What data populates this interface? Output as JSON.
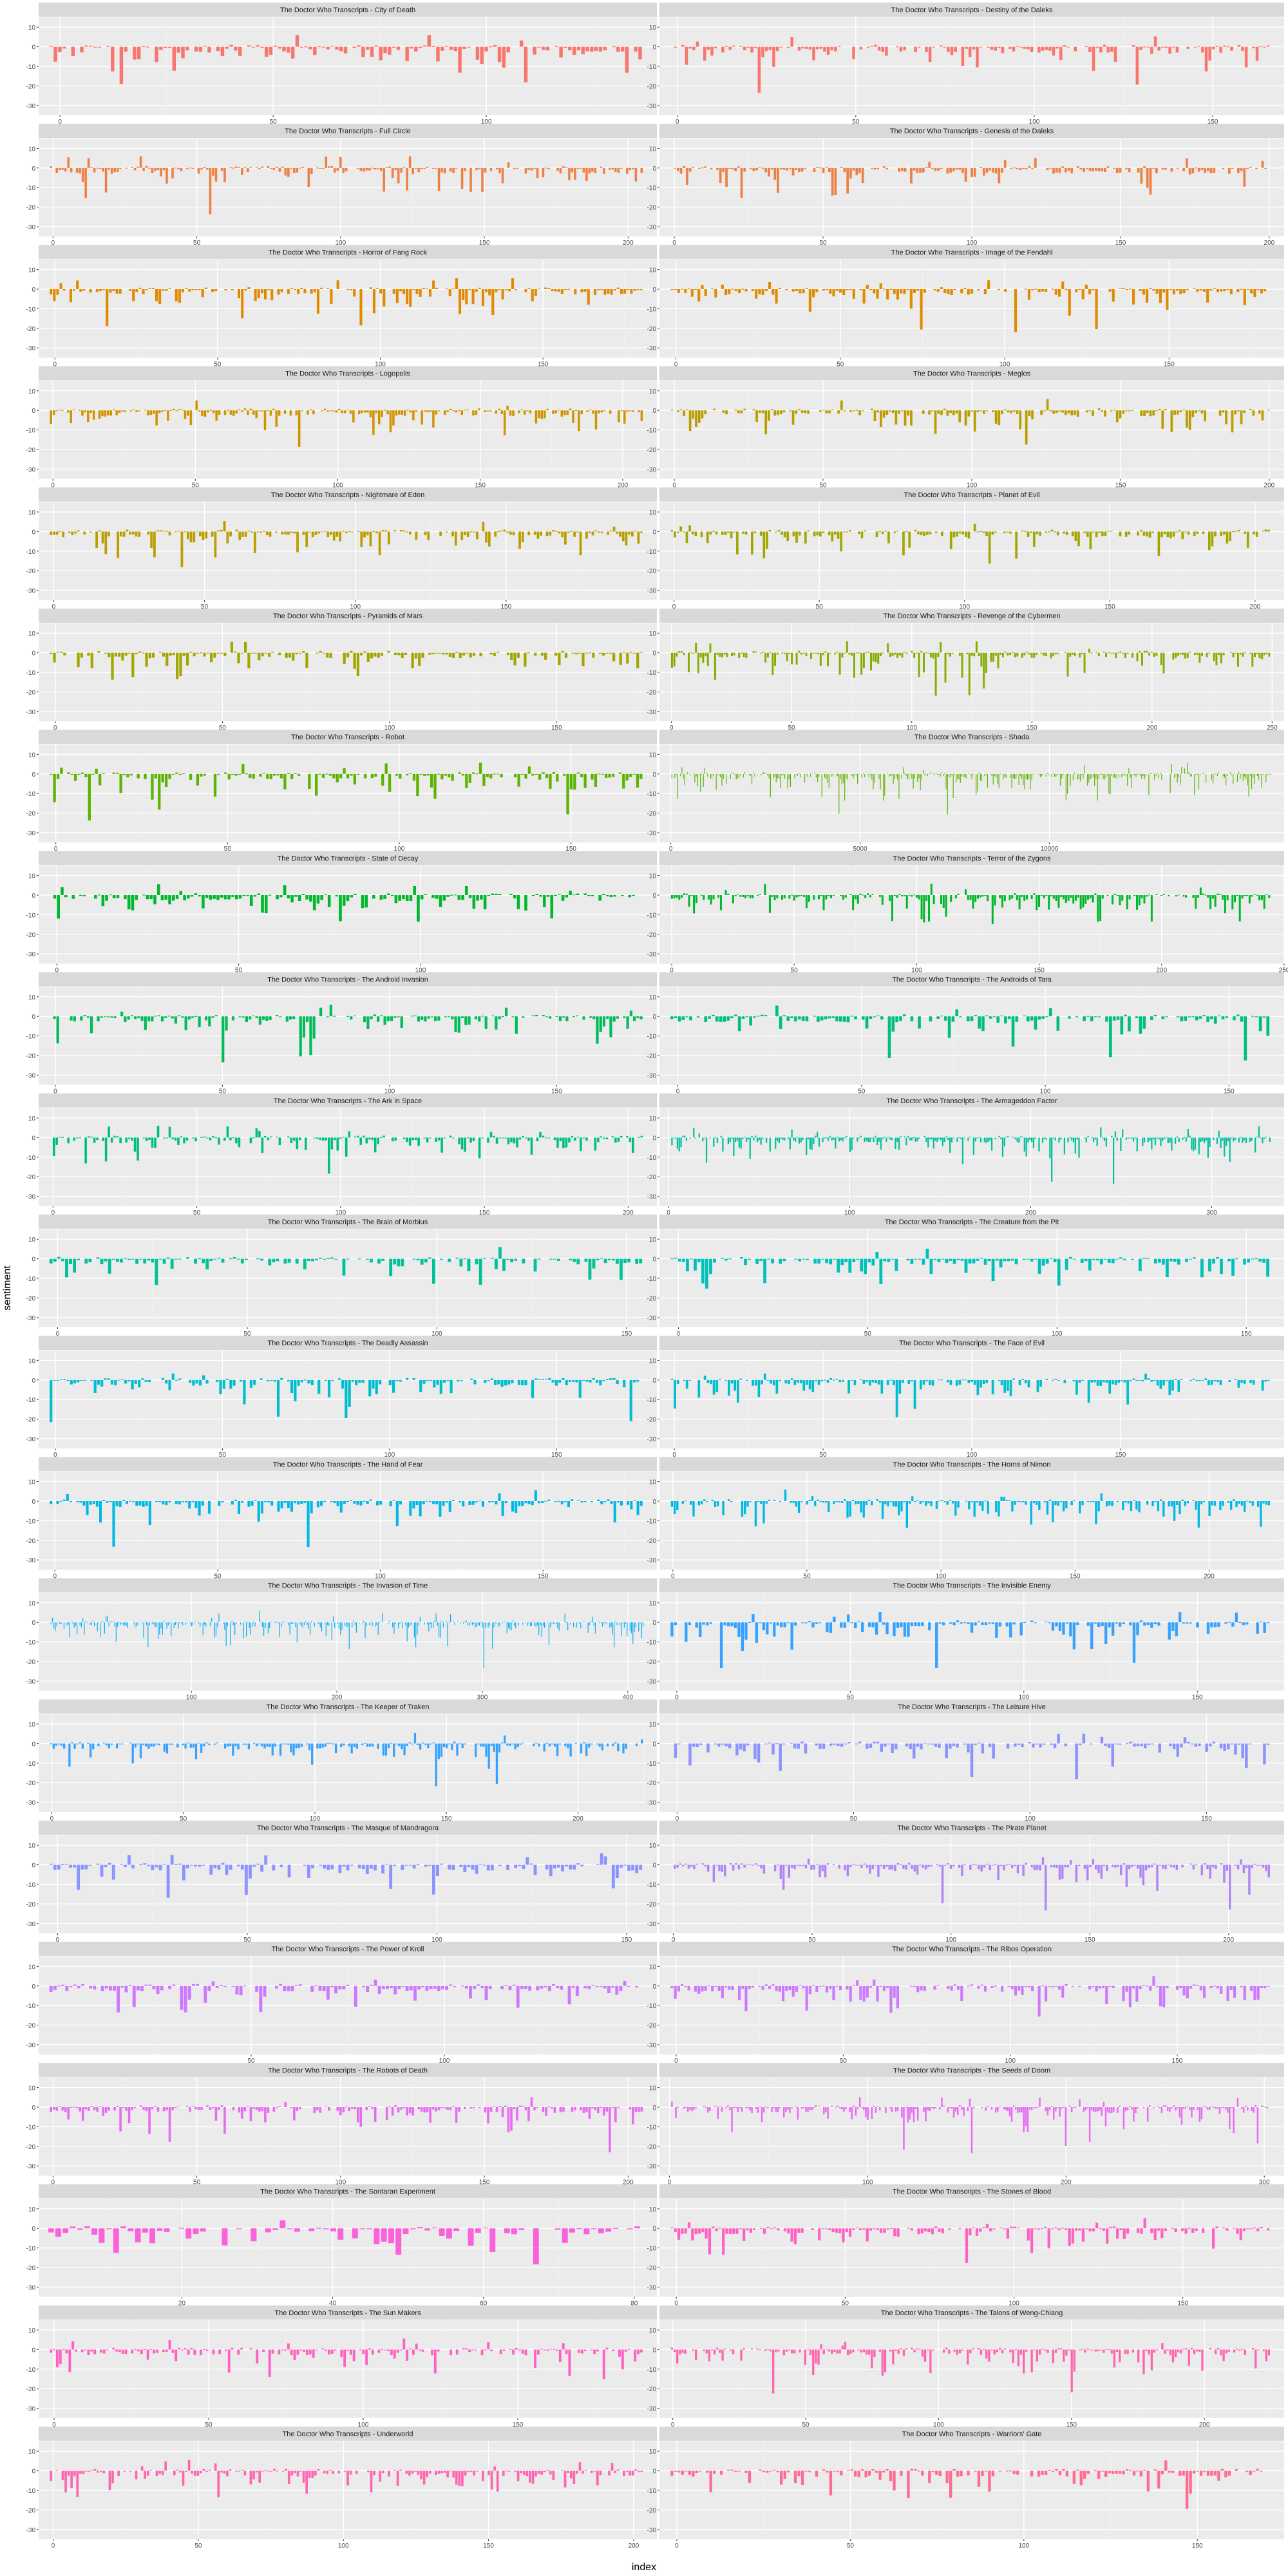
{
  "figure": {
    "ylabel": "sentiment",
    "xlabel": "index",
    "y_ticks": [
      10,
      0,
      -10,
      -20,
      -30
    ],
    "ylim": [
      -35,
      15
    ],
    "colors": [
      "#F8766D",
      "#EE8044",
      "#E18A00",
      "#CF9400",
      "#BA9E00",
      "#A3A500",
      "#85AD00",
      "#5EB300",
      "#00B82B",
      "#00BC59",
      "#00BF7D",
      "#00C19C",
      "#00C1B8",
      "#00BECF",
      "#00B8E5",
      "#00AEF6",
      "#35A2FF",
      "#8B93FF",
      "#B084F7",
      "#CD79FF",
      "#E76BF3",
      "#FA62DB",
      "#FF61C3",
      "#FF64AE",
      "#FF6C91"
    ]
  },
  "chart_data": [
    {
      "type": "bar",
      "title": "The Doctor Who Transcripts - City of Death",
      "x_ticks": [
        0,
        50,
        100
      ],
      "xlim": [
        -5,
        140
      ],
      "n": 135,
      "seed": 1
    },
    {
      "type": "bar",
      "title": "The Doctor Who Transcripts - Destiny of the Daleks",
      "x_ticks": [
        0,
        50,
        100,
        150
      ],
      "xlim": [
        -5,
        170
      ],
      "n": 165,
      "seed": 2
    },
    {
      "type": "bar",
      "title": "The Doctor Who Transcripts - Full Circle",
      "x_ticks": [
        0,
        50,
        100,
        150,
        200
      ],
      "xlim": [
        -5,
        210
      ],
      "n": 205,
      "seed": 3
    },
    {
      "type": "bar",
      "title": "The Doctor Who Transcripts - Genesis of the Daleks",
      "x_ticks": [
        0,
        50,
        100,
        150,
        200
      ],
      "xlim": [
        -5,
        205
      ],
      "n": 198,
      "seed": 4
    },
    {
      "type": "bar",
      "title": "The Doctor Who Transcripts - Horror of Fang Rock",
      "x_ticks": [
        0,
        50,
        100,
        150
      ],
      "xlim": [
        -5,
        185
      ],
      "n": 180,
      "seed": 5
    },
    {
      "type": "bar",
      "title": "The Doctor Who Transcripts - Image of the Fendahl",
      "x_ticks": [
        0,
        50,
        100,
        150
      ],
      "xlim": [
        -5,
        185
      ],
      "n": 178,
      "seed": 6
    },
    {
      "type": "bar",
      "title": "The Doctor Who Transcripts - Logopolis",
      "x_ticks": [
        0,
        50,
        100,
        150,
        200
      ],
      "xlim": [
        -5,
        212
      ],
      "n": 208,
      "seed": 7
    },
    {
      "type": "bar",
      "title": "The Doctor Who Transcripts - Meglos",
      "x_ticks": [
        0,
        50,
        100,
        150,
        200
      ],
      "xlim": [
        -5,
        205
      ],
      "n": 198,
      "seed": 8
    },
    {
      "type": "bar",
      "title": "The Doctor Who Transcripts - Nightmare of Eden",
      "x_ticks": [
        0,
        50,
        100,
        150
      ],
      "xlim": [
        -5,
        200
      ],
      "n": 195,
      "seed": 9
    },
    {
      "type": "bar",
      "title": "The Doctor Who Transcripts - Planet of Evil",
      "x_ticks": [
        0,
        50,
        100,
        150,
        200
      ],
      "xlim": [
        -5,
        210
      ],
      "n": 202,
      "seed": 10
    },
    {
      "type": "bar",
      "title": "The Doctor Who Transcripts - Pyramids of Mars",
      "x_ticks": [
        0,
        50,
        100,
        150
      ],
      "xlim": [
        -5,
        180
      ],
      "n": 174,
      "seed": 11
    },
    {
      "type": "bar",
      "title": "The Doctor Who Transcripts - Revenge of the Cybermen",
      "x_ticks": [
        0,
        50,
        100,
        150,
        200,
        250
      ],
      "xlim": [
        -5,
        255
      ],
      "n": 250,
      "seed": 12
    },
    {
      "type": "bar",
      "title": "The Doctor Who Transcripts - Robot",
      "x_ticks": [
        0,
        50,
        100,
        150
      ],
      "xlim": [
        -5,
        175
      ],
      "n": 170,
      "seed": 13
    },
    {
      "type": "bar",
      "title": "The Doctor Who Transcripts - Shada",
      "x_ticks": [
        0,
        5000,
        10000
      ],
      "xlim": [
        -300,
        16200
      ],
      "n": 420,
      "seed": 14,
      "thin": true
    },
    {
      "type": "bar",
      "title": "The Doctor Who Transcripts - State of Decay",
      "x_ticks": [
        0,
        50,
        100
      ],
      "xlim": [
        -5,
        165
      ],
      "n": 160,
      "seed": 15
    },
    {
      "type": "bar",
      "title": "The Doctor Who Transcripts - Terror of the Zygons",
      "x_ticks": [
        0,
        50,
        100,
        150,
        200,
        250
      ],
      "xlim": [
        -5,
        250
      ],
      "n": 245,
      "seed": 16
    },
    {
      "type": "bar",
      "title": "The Doctor Who Transcripts - The Android Invasion",
      "x_ticks": [
        0,
        50,
        100,
        150
      ],
      "xlim": [
        -5,
        180
      ],
      "n": 176,
      "seed": 17
    },
    {
      "type": "bar",
      "title": "The Doctor Who Transcripts - The Androids of Tara",
      "x_ticks": [
        0,
        50,
        100,
        150
      ],
      "xlim": [
        -5,
        165
      ],
      "n": 160,
      "seed": 18
    },
    {
      "type": "bar",
      "title": "The Doctor Who Transcripts - The Ark in Space",
      "x_ticks": [
        0,
        50,
        100,
        150,
        200
      ],
      "xlim": [
        -5,
        210
      ],
      "n": 205,
      "seed": 19
    },
    {
      "type": "bar",
      "title": "The Doctor Who Transcripts - The Armageddon Factor",
      "x_ticks": [
        0,
        100,
        200,
        300
      ],
      "xlim": [
        -5,
        340
      ],
      "n": 330,
      "seed": 20
    },
    {
      "type": "bar",
      "title": "The Doctor Who Transcripts - The Brain of Morbius",
      "x_ticks": [
        0,
        50,
        100,
        150
      ],
      "xlim": [
        -5,
        158
      ],
      "n": 152,
      "seed": 21
    },
    {
      "type": "bar",
      "title": "The Doctor Who Transcripts - The Creature from the Pit",
      "x_ticks": [
        0,
        50,
        100,
        150
      ],
      "xlim": [
        -5,
        160
      ],
      "n": 155,
      "seed": 22
    },
    {
      "type": "bar",
      "title": "The Doctor Who Transcripts - The Deadly Assassin",
      "x_ticks": [
        0,
        50,
        100,
        150
      ],
      "xlim": [
        -5,
        180
      ],
      "n": 175,
      "seed": 23
    },
    {
      "type": "bar",
      "title": "The Doctor Who Transcripts - The Face of Evil",
      "x_ticks": [
        0,
        50,
        100,
        150
      ],
      "xlim": [
        -5,
        205
      ],
      "n": 200,
      "seed": 24
    },
    {
      "type": "bar",
      "title": "The Doctor Who Transcripts - The Hand of Fear",
      "x_ticks": [
        0,
        50,
        100,
        150
      ],
      "xlim": [
        -5,
        185
      ],
      "n": 180,
      "seed": 25
    },
    {
      "type": "bar",
      "title": "The Doctor Who Transcripts - The Horns of Nimon",
      "x_ticks": [
        0,
        50,
        100,
        150,
        200
      ],
      "xlim": [
        -5,
        228
      ],
      "n": 222,
      "seed": 26
    },
    {
      "type": "bar",
      "title": "The Doctor Who Transcripts - The Invasion of Time",
      "x_ticks": [
        100,
        200,
        300,
        400
      ],
      "xlim": [
        -5,
        420
      ],
      "n": 410,
      "seed": 27,
      "thin": true
    },
    {
      "type": "bar",
      "title": "The Doctor Who Transcripts - The Invisible Enemy",
      "x_ticks": [
        0,
        50,
        100,
        150
      ],
      "xlim": [
        -5,
        175
      ],
      "n": 170,
      "seed": 28
    },
    {
      "type": "bar",
      "title": "The Doctor Who Transcripts - The Keeper of Traken",
      "x_ticks": [
        0,
        50,
        100,
        150,
        200
      ],
      "xlim": [
        -5,
        230
      ],
      "n": 225,
      "seed": 29
    },
    {
      "type": "bar",
      "title": "The Doctor Who Transcripts - The Leisure Hive",
      "x_ticks": [
        0,
        50,
        100,
        150
      ],
      "xlim": [
        -5,
        172
      ],
      "n": 166,
      "seed": 30
    },
    {
      "type": "bar",
      "title": "The Doctor Who Transcripts - The Masque of Mandragora",
      "x_ticks": [
        0,
        50,
        100,
        150
      ],
      "xlim": [
        -5,
        158
      ],
      "n": 152,
      "seed": 31
    },
    {
      "type": "bar",
      "title": "The Doctor Who Transcripts - The Pirate Planet",
      "x_ticks": [
        0,
        50,
        100,
        150,
        200
      ],
      "xlim": [
        -5,
        220
      ],
      "n": 215,
      "seed": 32
    },
    {
      "type": "bar",
      "title": "The Doctor Who Transcripts - The Power of Kroll",
      "x_ticks": [
        50,
        100
      ],
      "xlim": [
        -5,
        155
      ],
      "n": 150,
      "seed": 33
    },
    {
      "type": "bar",
      "title": "The Doctor Who Transcripts - The Ribos Operation",
      "x_ticks": [
        0,
        50,
        100,
        150
      ],
      "xlim": [
        -5,
        182
      ],
      "n": 178,
      "seed": 34
    },
    {
      "type": "bar",
      "title": "The Doctor Who Transcripts - The Robots of Death",
      "x_ticks": [
        0,
        50,
        100,
        150,
        200
      ],
      "xlim": [
        -5,
        210
      ],
      "n": 205,
      "seed": 35
    },
    {
      "type": "bar",
      "title": "The Doctor Who Transcripts - The Seeds of Doom",
      "x_ticks": [
        0,
        100,
        200,
        300
      ],
      "xlim": [
        -5,
        310
      ],
      "n": 300,
      "seed": 36
    },
    {
      "type": "bar",
      "title": "The Doctor Who Transcripts - The Sontaran Experiment",
      "x_ticks": [
        20,
        40,
        60,
        80
      ],
      "xlim": [
        1,
        83
      ],
      "n": 82,
      "seed": 37
    },
    {
      "type": "bar",
      "title": "The Doctor Who Transcripts - The Stones of Blood",
      "x_ticks": [
        0,
        50,
        100,
        150
      ],
      "xlim": [
        -5,
        180
      ],
      "n": 175,
      "seed": 38
    },
    {
      "type": "bar",
      "title": "The Doctor Who Transcripts - The Sun Makers",
      "x_ticks": [
        0,
        50,
        100,
        150
      ],
      "xlim": [
        -5,
        195
      ],
      "n": 190,
      "seed": 39
    },
    {
      "type": "bar",
      "title": "The Doctor Who Transcripts - The Talons of Weng-Chiang",
      "x_ticks": [
        0,
        50,
        100,
        150,
        200
      ],
      "xlim": [
        -5,
        230
      ],
      "n": 225,
      "seed": 40
    },
    {
      "type": "bar",
      "title": "The Doctor Who Transcripts - Underworld",
      "x_ticks": [
        0,
        50,
        100,
        150,
        200
      ],
      "xlim": [
        -5,
        208
      ],
      "n": 202,
      "seed": 41
    },
    {
      "type": "bar",
      "title": "The Doctor Who Transcripts - Warriors' Gate",
      "x_ticks": [
        0,
        50,
        100,
        150
      ],
      "xlim": [
        -5,
        175
      ],
      "n": 170,
      "seed": 42
    }
  ]
}
